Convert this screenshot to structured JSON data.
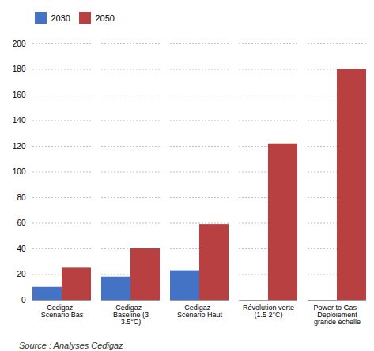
{
  "chart_data": {
    "type": "bar",
    "categories": [
      "Cedigaz -\nScénario Bas",
      "Cedigaz -\nBaseline (3\n3.5°C)",
      "Cedigaz -\nScénario Haut",
      "Révolution verte\n(1.5 2°C)",
      "Power to Gas -\nDeploiement\ngrande échelle"
    ],
    "series": [
      {
        "name": "2030",
        "color": "#4472c4",
        "values": [
          10,
          18,
          23,
          0,
          0
        ]
      },
      {
        "name": "2050",
        "color": "#b94040",
        "values": [
          25,
          40,
          59,
          122,
          180
        ]
      }
    ],
    "ylim": [
      0,
      200
    ],
    "yticks": [
      0,
      20,
      40,
      60,
      80,
      100,
      120,
      140,
      160,
      180,
      200
    ],
    "grid": true,
    "legend": "upper left",
    "caption": "Source : Analyses Cedigaz"
  }
}
